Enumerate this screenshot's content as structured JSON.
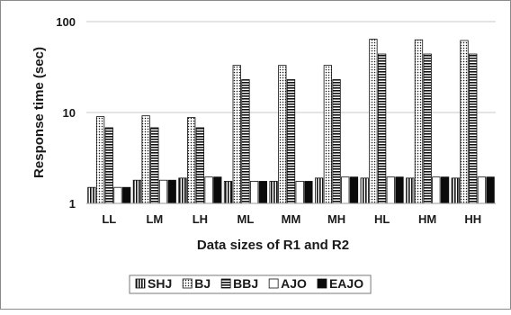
{
  "chart_data": {
    "type": "bar",
    "title": "",
    "xlabel": "Data sizes of R1 and R2",
    "ylabel": "Response time (sec)",
    "yscale": "log",
    "ylim": [
      1,
      100
    ],
    "yticks": [
      "1",
      "10",
      "100"
    ],
    "ytick_values": [
      1,
      10,
      100
    ],
    "grid": true,
    "legend_position": "bottom",
    "categories": [
      "LL",
      "LM",
      "LH",
      "ML",
      "MM",
      "MH",
      "HL",
      "HM",
      "HH"
    ],
    "series": [
      {
        "name": "SHJ",
        "pattern": "vstripe",
        "values": [
          1.5,
          1.8,
          1.9,
          1.75,
          1.75,
          1.9,
          1.9,
          1.9,
          1.9
        ]
      },
      {
        "name": "BJ",
        "pattern": "dots",
        "values": [
          9,
          9.2,
          8.8,
          33,
          33,
          33,
          64,
          63,
          62
        ]
      },
      {
        "name": "BBJ",
        "pattern": "hstripe",
        "values": [
          6.8,
          6.8,
          6.8,
          23,
          23,
          23,
          44,
          44,
          44
        ]
      },
      {
        "name": "AJO",
        "pattern": "white",
        "values": [
          1.5,
          1.8,
          1.95,
          1.75,
          1.75,
          1.95,
          1.95,
          1.95,
          1.95
        ]
      },
      {
        "name": "EAJO",
        "pattern": "black",
        "values": [
          1.5,
          1.8,
          1.95,
          1.75,
          1.75,
          1.95,
          1.95,
          1.95,
          1.95
        ]
      }
    ]
  }
}
